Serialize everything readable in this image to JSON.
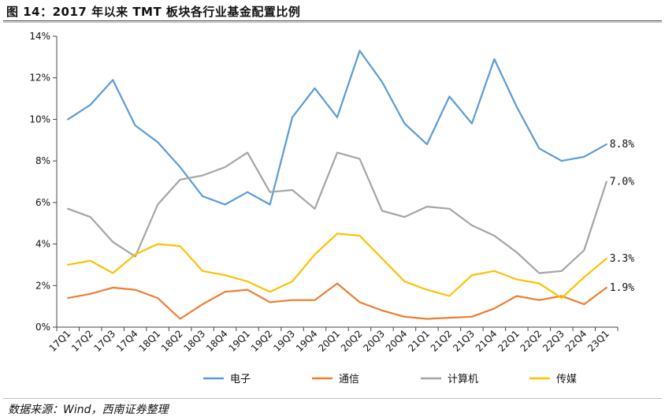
{
  "title": "图 14：2017 年以来 TMT 板块各行业基金配置比例",
  "source": "数据来源：Wind，西南证券整理",
  "chart_data": {
    "type": "line",
    "categories": [
      "17Q1",
      "17Q2",
      "17Q3",
      "17Q4",
      "18Q1",
      "18Q2",
      "18Q3",
      "18Q4",
      "19Q1",
      "19Q2",
      "19Q3",
      "19Q4",
      "20Q1",
      "20Q2",
      "20Q3",
      "20Q4",
      "21Q1",
      "21Q2",
      "21Q3",
      "21Q4",
      "22Q1",
      "22Q2",
      "22Q3",
      "22Q4",
      "23Q1"
    ],
    "ylim": [
      0,
      14
    ],
    "yticks": [
      0,
      2,
      4,
      6,
      8,
      10,
      12,
      14
    ],
    "ytick_labels": [
      "0%",
      "2%",
      "4%",
      "6%",
      "8%",
      "10%",
      "12%",
      "14%"
    ],
    "series": [
      {
        "name": "电子",
        "color": "#5B9BD5",
        "end_label": "8.8%",
        "values": [
          10.0,
          10.7,
          11.9,
          9.7,
          8.9,
          7.7,
          6.3,
          5.9,
          6.5,
          5.9,
          10.1,
          11.5,
          10.1,
          13.3,
          11.8,
          9.8,
          8.8,
          11.1,
          9.8,
          12.9,
          10.6,
          8.6,
          8.0,
          8.2,
          8.8
        ]
      },
      {
        "name": "通信",
        "color": "#ED7D31",
        "end_label": "1.9%",
        "values": [
          1.4,
          1.6,
          1.9,
          1.8,
          1.4,
          0.4,
          1.1,
          1.7,
          1.8,
          1.2,
          1.3,
          1.3,
          2.1,
          1.2,
          0.8,
          0.5,
          0.4,
          0.45,
          0.5,
          0.9,
          1.5,
          1.3,
          1.5,
          1.1,
          1.9
        ]
      },
      {
        "name": "计算机",
        "color": "#A5A5A5",
        "end_label": "7.0%",
        "values": [
          5.7,
          5.3,
          4.1,
          3.4,
          5.9,
          7.1,
          7.3,
          7.7,
          8.4,
          6.5,
          6.6,
          5.7,
          8.4,
          8.1,
          5.6,
          5.3,
          5.8,
          5.7,
          4.9,
          4.4,
          3.6,
          2.6,
          2.7,
          3.7,
          7.0
        ]
      },
      {
        "name": "传媒",
        "color": "#FFC000",
        "end_label": "3.3%",
        "values": [
          3.0,
          3.2,
          2.6,
          3.5,
          4.0,
          3.9,
          2.7,
          2.5,
          2.2,
          1.7,
          2.2,
          3.5,
          4.5,
          4.4,
          3.3,
          2.2,
          1.8,
          1.5,
          2.5,
          2.7,
          2.3,
          2.1,
          1.4,
          2.4,
          3.3
        ]
      }
    ]
  }
}
